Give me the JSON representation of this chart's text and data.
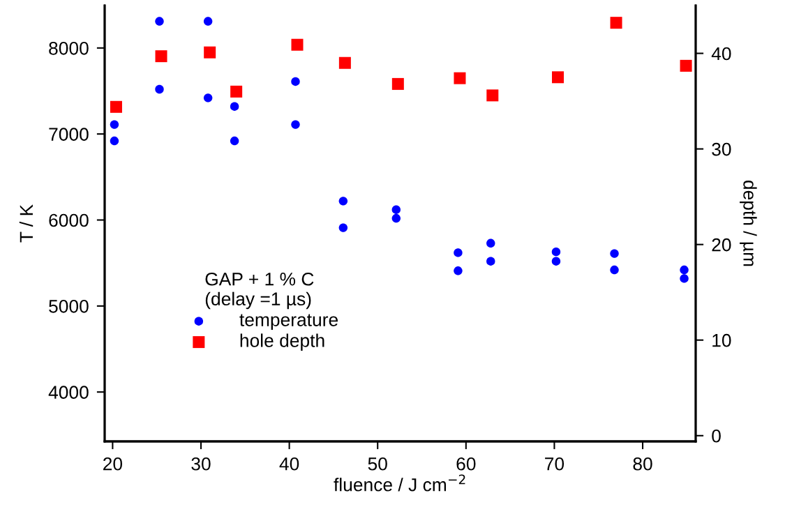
{
  "chart_data": {
    "type": "scatter",
    "xlabel": "fluence / J cm$^{−2}$",
    "ylabel": "T / K",
    "y2label": "depth / µm",
    "legend_title": "GAP + 1 % C\n(delay =1 µs)",
    "legend": "bottom left",
    "grid": false,
    "xlim": [
      19.1,
      86.0
    ],
    "xticks": [
      20,
      30,
      40,
      50,
      60,
      70,
      80
    ],
    "ylim": [
      3426,
      8493
    ],
    "yticks": [
      4000,
      5000,
      6000,
      7000,
      8000
    ],
    "y2lim": [
      -0.6,
      45.0
    ],
    "y2ticks": [
      0,
      10,
      20,
      30,
      40
    ],
    "series": [
      {
        "name": "temperature",
        "color": "#0000ff",
        "marker": "circle",
        "x": [
          20.2,
          20.2,
          25.3,
          25.3,
          30.8,
          30.8,
          33.8,
          33.8,
          40.7,
          40.7,
          46.1,
          46.1,
          52.1,
          52.1,
          59.1,
          59.1,
          62.8,
          62.8,
          70.2,
          70.2,
          76.8,
          76.8,
          84.7,
          84.7
        ],
        "values": [
          7110,
          6920,
          8310,
          7520,
          8310,
          7420,
          7320,
          6920,
          7610,
          7110,
          6220,
          5910,
          6120,
          6020,
          5620,
          5410,
          5730,
          5520,
          5630,
          5520,
          5610,
          5420,
          5420,
          5320
        ]
      },
      {
        "name": "hole depth",
        "color": "#ff0000",
        "marker": "square",
        "axis": "y2",
        "x": [
          20.4,
          25.5,
          31.0,
          34.0,
          40.9,
          46.3,
          52.3,
          59.3,
          63.0,
          70.4,
          77.0,
          84.9
        ],
        "values": [
          34.4,
          39.7,
          40.1,
          36.0,
          40.9,
          39.0,
          36.8,
          37.4,
          35.6,
          37.5,
          43.2,
          38.7
        ]
      }
    ]
  }
}
